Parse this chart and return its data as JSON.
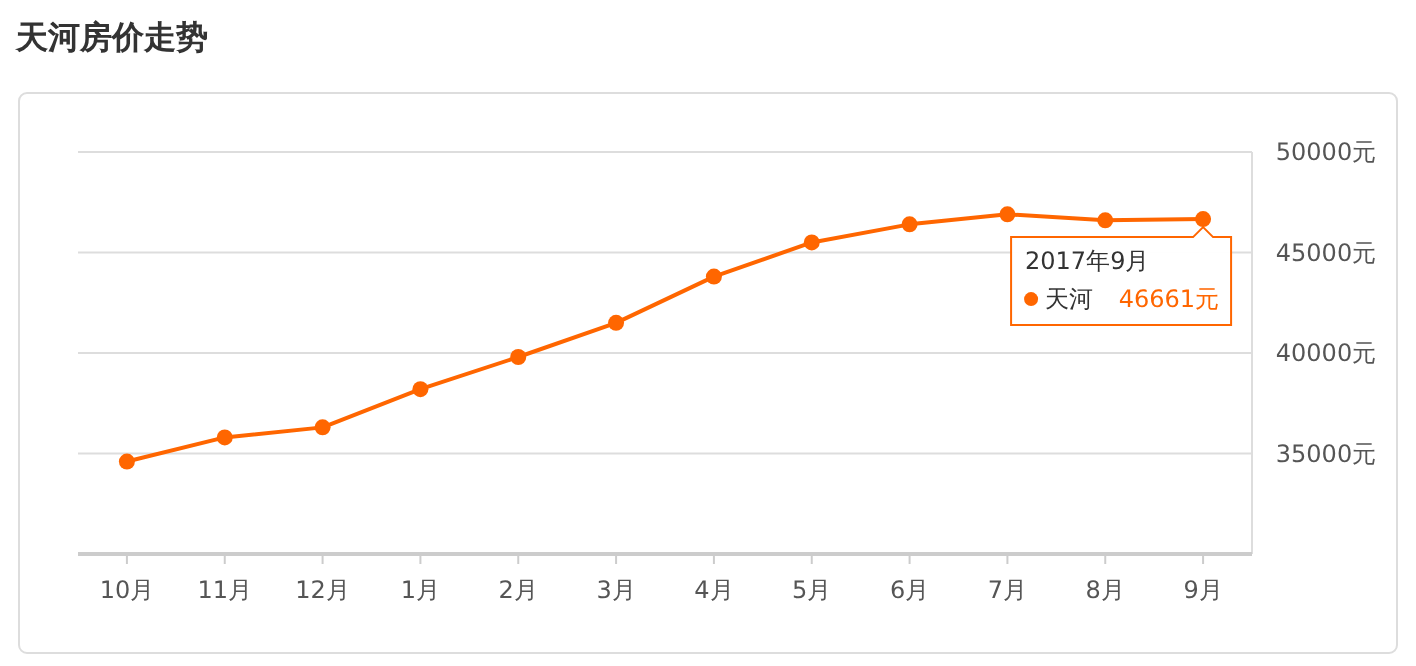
{
  "chart_data": {
    "type": "line",
    "title": "天河房价走势",
    "categories": [
      "10月",
      "11月",
      "12月",
      "1月",
      "2月",
      "3月",
      "4月",
      "5月",
      "6月",
      "7月",
      "8月",
      "9月"
    ],
    "series": [
      {
        "name": "天河",
        "color": "#ff6600",
        "values": [
          34600,
          35800,
          36300,
          38200,
          39800,
          41500,
          43800,
          45500,
          46400,
          46900,
          46600,
          46661
        ],
        "value_labels": [
          null,
          null,
          null,
          null,
          null,
          null,
          null,
          null,
          null,
          null,
          null,
          "46661元"
        ]
      }
    ],
    "ylim": [
      30000,
      50000
    ],
    "yticks": [
      {
        "value": 35000,
        "label": "35000元"
      },
      {
        "value": 40000,
        "label": "40000元"
      },
      {
        "value": 45000,
        "label": "45000元"
      },
      {
        "value": 50000,
        "label": "50000元"
      }
    ],
    "grid": "y",
    "marker": "circle",
    "line_style": "solid",
    "annotations": [
      {
        "text": "2017年9月",
        "x": "9月",
        "y": 46661
      }
    ]
  }
}
